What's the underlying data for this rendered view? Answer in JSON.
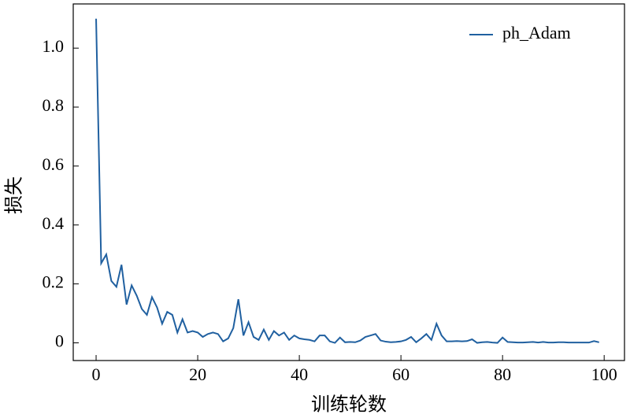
{
  "chart_data": {
    "type": "line",
    "x_label": "训练轮数",
    "y_label": "损失",
    "x": [
      0,
      1,
      2,
      3,
      4,
      5,
      6,
      7,
      8,
      9,
      10,
      11,
      12,
      13,
      14,
      15,
      16,
      17,
      18,
      19,
      20,
      21,
      22,
      23,
      24,
      25,
      26,
      27,
      28,
      29,
      30,
      31,
      32,
      33,
      34,
      35,
      36,
      37,
      38,
      39,
      40,
      41,
      42,
      43,
      44,
      45,
      46,
      47,
      48,
      49,
      50,
      51,
      52,
      53,
      54,
      55,
      56,
      57,
      58,
      59,
      60,
      61,
      62,
      63,
      64,
      65,
      66,
      67,
      68,
      69,
      70,
      71,
      72,
      73,
      74,
      75,
      76,
      77,
      78,
      79,
      80,
      81,
      82,
      83,
      84,
      85,
      86,
      87,
      88,
      89,
      90,
      91,
      92,
      93,
      94,
      95,
      96,
      97,
      98,
      99
    ],
    "series": [
      {
        "name": "ph_Adam",
        "color": "#2060a0",
        "values": [
          1.1,
          0.27,
          0.3,
          0.21,
          0.19,
          0.265,
          0.13,
          0.195,
          0.16,
          0.115,
          0.095,
          0.155,
          0.12,
          0.065,
          0.105,
          0.095,
          0.035,
          0.08,
          0.035,
          0.04,
          0.035,
          0.02,
          0.03,
          0.035,
          0.03,
          0.005,
          0.015,
          0.05,
          0.148,
          0.025,
          0.07,
          0.02,
          0.01,
          0.045,
          0.01,
          0.04,
          0.025,
          0.035,
          0.01,
          0.025,
          0.015,
          0.012,
          0.01,
          0.005,
          0.025,
          0.025,
          0.005,
          0.0,
          0.018,
          0.002,
          0.003,
          0.002,
          0.008,
          0.02,
          0.025,
          0.03,
          0.008,
          0.004,
          0.002,
          0.003,
          0.005,
          0.01,
          0.02,
          0.002,
          0.015,
          0.03,
          0.01,
          0.065,
          0.025,
          0.005,
          0.005,
          0.006,
          0.005,
          0.006,
          0.012,
          0.0,
          0.002,
          0.003,
          0.001,
          0.0,
          0.018,
          0.003,
          0.002,
          0.001,
          0.001,
          0.002,
          0.003,
          0.001,
          0.003,
          0.001,
          0.001,
          0.002,
          0.002,
          0.001,
          0.001,
          0.001,
          0.001,
          0.001,
          0.006,
          0.002
        ]
      }
    ],
    "xlim": [
      -4.5,
      104
    ],
    "ylim": [
      -0.06,
      1.15
    ],
    "xticks": [
      0,
      20,
      40,
      60,
      80,
      100
    ],
    "yticks": [
      0,
      0.2,
      0.4,
      0.6,
      0.8,
      {
        "value": 1,
        "label": "1.0"
      }
    ],
    "legend": "upper right",
    "grid": false
  }
}
